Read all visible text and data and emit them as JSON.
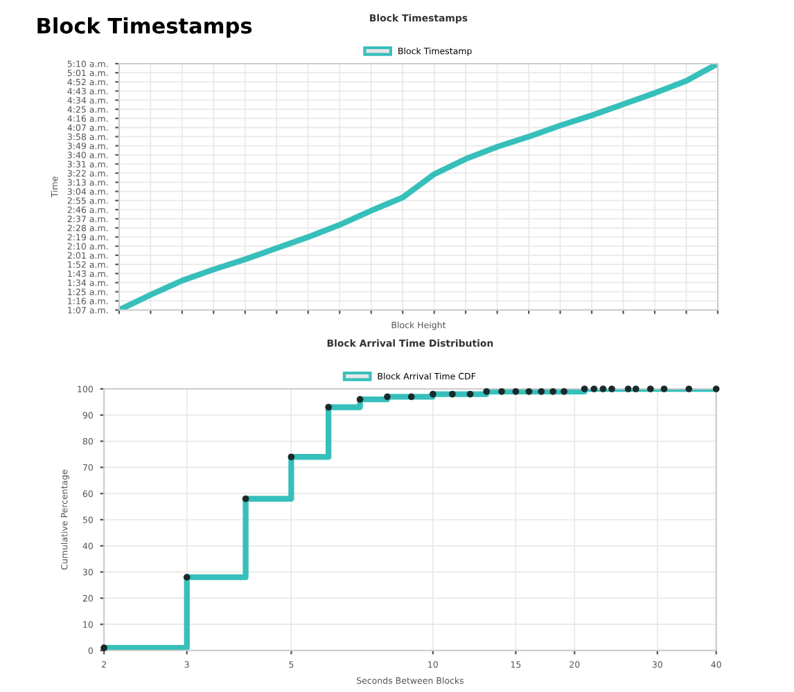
{
  "chart_data": [
    {
      "type": "line",
      "title": "Block Timestamps",
      "annotations": [
        "Block Timestamps"
      ],
      "xlabel": "Block Height",
      "ylabel": "Time",
      "categories": [
        null,
        null,
        null,
        null,
        null,
        null,
        null,
        null,
        null,
        null,
        null,
        null,
        null,
        null,
        null,
        null,
        null,
        null,
        null,
        null
      ],
      "series": [
        {
          "name": "Block Timestamp",
          "color": "#36bfbb",
          "values": [
            67,
            82,
            96,
            107,
            117,
            128,
            139,
            151,
            165,
            178,
            201,
            216,
            228,
            238,
            249,
            259,
            270,
            281,
            293,
            310
          ]
        }
      ],
      "ylim": [
        67,
        310
      ],
      "yticks": [
        {
          "value": 67,
          "label": "1:07 a.m."
        },
        {
          "value": 76,
          "label": "1:16 a.m."
        },
        {
          "value": 85,
          "label": "1:25 a.m."
        },
        {
          "value": 94,
          "label": "1:34 a.m."
        },
        {
          "value": 103,
          "label": "1:43 a.m."
        },
        {
          "value": 112,
          "label": "1:52 a.m."
        },
        {
          "value": 121,
          "label": "2:01 a.m."
        },
        {
          "value": 130,
          "label": "2:10 a.m."
        },
        {
          "value": 139,
          "label": "2:19 a.m."
        },
        {
          "value": 148,
          "label": "2:28 a.m."
        },
        {
          "value": 157,
          "label": "2:37 a.m."
        },
        {
          "value": 166,
          "label": "2:46 a.m."
        },
        {
          "value": 175,
          "label": "2:55 a.m."
        },
        {
          "value": 184,
          "label": "3:04 a.m."
        },
        {
          "value": 193,
          "label": "3:13 a.m."
        },
        {
          "value": 202,
          "label": "3:22 a.m."
        },
        {
          "value": 211,
          "label": "3:31 a.m."
        },
        {
          "value": 220,
          "label": "3:40 a.m."
        },
        {
          "value": 229,
          "label": "3:49 a.m."
        },
        {
          "value": 238,
          "label": "3:58 a.m."
        },
        {
          "value": 247,
          "label": "4:07 a.m."
        },
        {
          "value": 256,
          "label": "4:16 a.m."
        },
        {
          "value": 265,
          "label": "4:25 a.m."
        },
        {
          "value": 274,
          "label": "4:34 a.m."
        },
        {
          "value": 283,
          "label": "4:43 a.m."
        },
        {
          "value": 292,
          "label": "4:52 a.m."
        },
        {
          "value": 301,
          "label": "5:01 a.m."
        },
        {
          "value": 310,
          "label": "5:10 a.m."
        }
      ],
      "tick_labels": "y",
      "grid": true,
      "legend": "top",
      "marker": "none",
      "line_style": "solid"
    },
    {
      "type": "step",
      "title": "Block Arrival Time Distribution",
      "xlabel": "Seconds Between Blocks",
      "ylabel": "Cumulative Percentage",
      "x": [
        2,
        3,
        4,
        5,
        6,
        7,
        8,
        9,
        10,
        11,
        12,
        13,
        14,
        15,
        16,
        17,
        18,
        19,
        21,
        22,
        23,
        24,
        26,
        27,
        29,
        31,
        35,
        40
      ],
      "series": [
        {
          "name": "Block Arrival Time CDF",
          "color": "#36bfbb",
          "values": [
            1,
            28,
            58,
            74,
            93,
            96,
            97,
            97,
            98,
            98,
            98,
            99,
            99,
            99,
            99,
            99,
            99,
            99,
            100,
            100,
            100,
            100,
            100,
            100,
            100,
            100,
            100,
            100
          ]
        }
      ],
      "log": "x",
      "xlim": [
        2,
        40
      ],
      "xticks": [
        2,
        3,
        5,
        10,
        15,
        20,
        30,
        40
      ],
      "ylim": [
        0,
        100
      ],
      "yticks": [
        0,
        10,
        20,
        30,
        40,
        50,
        60,
        70,
        80,
        90,
        100
      ],
      "grid": true,
      "legend": "top",
      "marker": "circle",
      "line_style": "solid"
    }
  ]
}
